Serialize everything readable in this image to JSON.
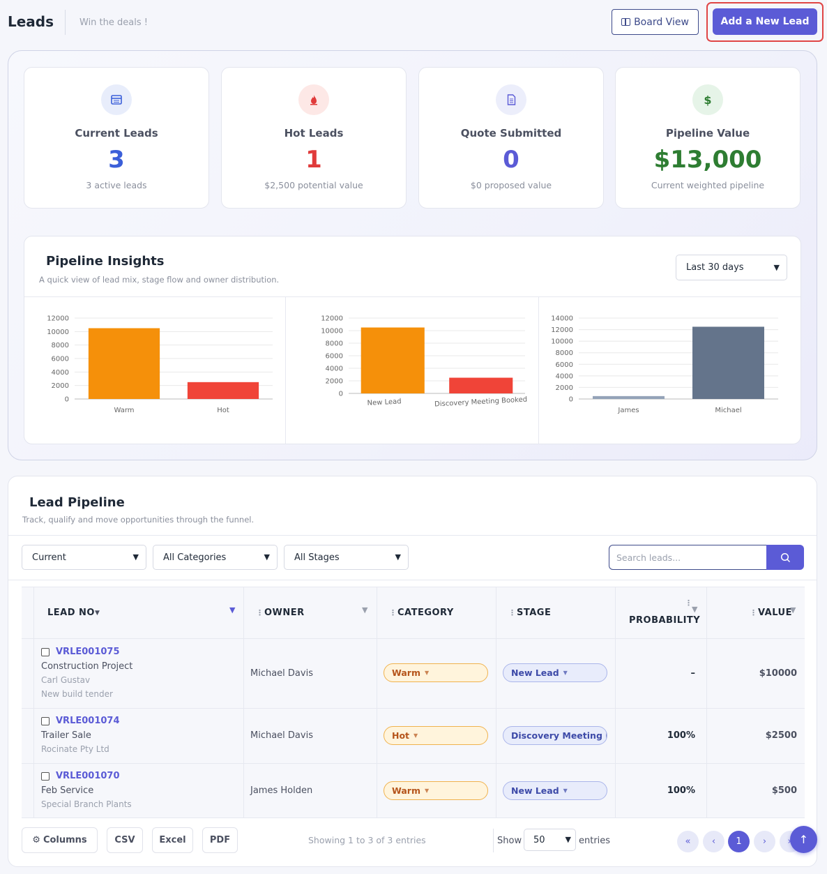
{
  "header": {
    "title": "Leads",
    "subtitle": "Win the deals !",
    "board_view_label": "Board View",
    "add_lead_label": "Add a New Lead"
  },
  "kpis": [
    {
      "label": "Current Leads",
      "value": "3",
      "sub": "3 active leads",
      "icon": "calendar-icon",
      "color": "#3b5fd9"
    },
    {
      "label": "Hot Leads",
      "value": "1",
      "sub": "$2,500 potential value",
      "icon": "fire-icon",
      "color": "#e03b3b"
    },
    {
      "label": "Quote Submitted",
      "value": "0",
      "sub": "$0 proposed value",
      "icon": "document-icon",
      "color": "#5b5bd6"
    },
    {
      "label": "Pipeline Value",
      "value": "$13,000",
      "sub": "Current weighted pipeline",
      "icon": "dollar-icon",
      "color": "#2e7d32"
    }
  ],
  "insights": {
    "title": "Pipeline Insights",
    "subtitle": "A quick view of lead mix, stage flow and owner distribution.",
    "range": "Last 30 days"
  },
  "chart_data": [
    {
      "type": "bar",
      "categories": [
        "Warm",
        "Hot"
      ],
      "values": [
        10500,
        2500
      ],
      "colors": [
        "#f5900a",
        "#f04438"
      ],
      "ylim": [
        0,
        12000
      ],
      "yticks": [
        0,
        2000,
        4000,
        6000,
        8000,
        10000,
        12000
      ],
      "grid": true
    },
    {
      "type": "bar",
      "categories": [
        "New Lead",
        "Discovery Meeting Booked"
      ],
      "values": [
        10500,
        2500
      ],
      "colors": [
        "#f5900a",
        "#f04438"
      ],
      "ylim": [
        0,
        12000
      ],
      "yticks": [
        0,
        2000,
        4000,
        6000,
        8000,
        10000,
        12000
      ],
      "grid": true
    },
    {
      "type": "bar",
      "categories": [
        "James",
        "Michael"
      ],
      "values": [
        500,
        12500
      ],
      "colors": [
        "#94a3b8",
        "#64748b"
      ],
      "ylim": [
        0,
        14000
      ],
      "yticks": [
        0,
        2000,
        4000,
        6000,
        8000,
        10000,
        12000,
        14000
      ],
      "grid": true
    }
  ],
  "pipeline": {
    "title": "Lead Pipeline",
    "subtitle": "Track, qualify and move opportunities through the funnel.",
    "filters": {
      "status": "Current",
      "category": "All Categories",
      "stage": "All Stages"
    },
    "search_placeholder": "Search leads...",
    "columns": [
      "LEAD NO",
      "OWNER",
      "CATEGORY",
      "STAGE",
      "PROBABILITY",
      "VALUE"
    ],
    "rows": [
      {
        "lead_no": "VRLE001075",
        "title": "Construction Project",
        "contact": "Carl Gustav",
        "note": "New build tender",
        "owner": "Michael Davis",
        "category": "Warm",
        "stage": "New Lead",
        "probability": "–",
        "value": "$10000"
      },
      {
        "lead_no": "VRLE001074",
        "title": "Trailer Sale",
        "contact": "Rocinate Pty Ltd",
        "note": "",
        "owner": "Michael Davis",
        "category": "Hot",
        "stage": "Discovery Meeting Booked",
        "probability": "100%",
        "value": "$2500"
      },
      {
        "lead_no": "VRLE001070",
        "title": "Feb Service",
        "contact": "Special Branch Plants",
        "note": "",
        "owner": "James Holden",
        "category": "Warm",
        "stage": "New Lead",
        "probability": "100%",
        "value": "$500"
      }
    ],
    "footer": {
      "columns_label": "Columns",
      "csv_label": "CSV",
      "excel_label": "Excel",
      "pdf_label": "PDF",
      "showing": "Showing 1 to 3 of 3 entries",
      "show_label": "Show",
      "page_length": "50",
      "entries_label": "entries",
      "current_page": "1"
    }
  }
}
